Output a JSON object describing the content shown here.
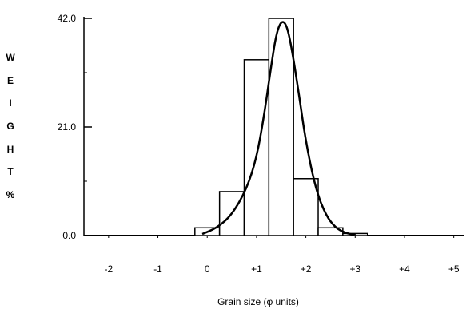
{
  "chart_data": {
    "type": "bar",
    "title": "",
    "xlabel": "Grain size (φ units)",
    "ylabel": "WEIGHT%",
    "ylabel_letters": [
      "W",
      "E",
      "I",
      "G",
      "H",
      "T",
      "%"
    ],
    "ylim": [
      0,
      42
    ],
    "y_ticks": [
      "0.0",
      "21.0",
      "42.0"
    ],
    "y_tick_values": [
      0,
      21,
      42
    ],
    "xlim": [
      -2.5,
      5.2
    ],
    "x_tick_values": [
      -2,
      -1,
      0,
      1,
      2,
      3,
      4,
      5
    ],
    "x_tick_labels": [
      "-2",
      "-1",
      "0",
      "+1",
      "+2",
      "+3",
      "+4",
      "+5"
    ],
    "bins": [
      {
        "x0": -0.25,
        "x1": 0.25,
        "value": 1.5
      },
      {
        "x0": 0.25,
        "x1": 0.75,
        "value": 8.5
      },
      {
        "x0": 0.75,
        "x1": 1.25,
        "value": 34
      },
      {
        "x0": 1.25,
        "x1": 1.75,
        "value": 42
      },
      {
        "x0": 1.75,
        "x1": 2.25,
        "value": 11
      },
      {
        "x0": 2.25,
        "x1": 2.75,
        "value": 1.5
      },
      {
        "x0": 2.75,
        "x1": 3.25,
        "value": 0.4
      }
    ],
    "curve": {
      "name": "",
      "points": [
        [
          -0.1,
          0.3
        ],
        [
          0.2,
          1.5
        ],
        [
          0.5,
          4
        ],
        [
          0.8,
          9
        ],
        [
          1.0,
          15
        ],
        [
          1.15,
          23
        ],
        [
          1.3,
          33
        ],
        [
          1.4,
          39
        ],
        [
          1.5,
          41.5
        ],
        [
          1.6,
          41
        ],
        [
          1.7,
          37
        ],
        [
          1.85,
          28
        ],
        [
          2.0,
          18
        ],
        [
          2.2,
          9
        ],
        [
          2.4,
          4
        ],
        [
          2.6,
          1.5
        ],
        [
          2.8,
          0.5
        ],
        [
          3.0,
          0.1
        ]
      ]
    },
    "grid": false,
    "legend": "none"
  }
}
